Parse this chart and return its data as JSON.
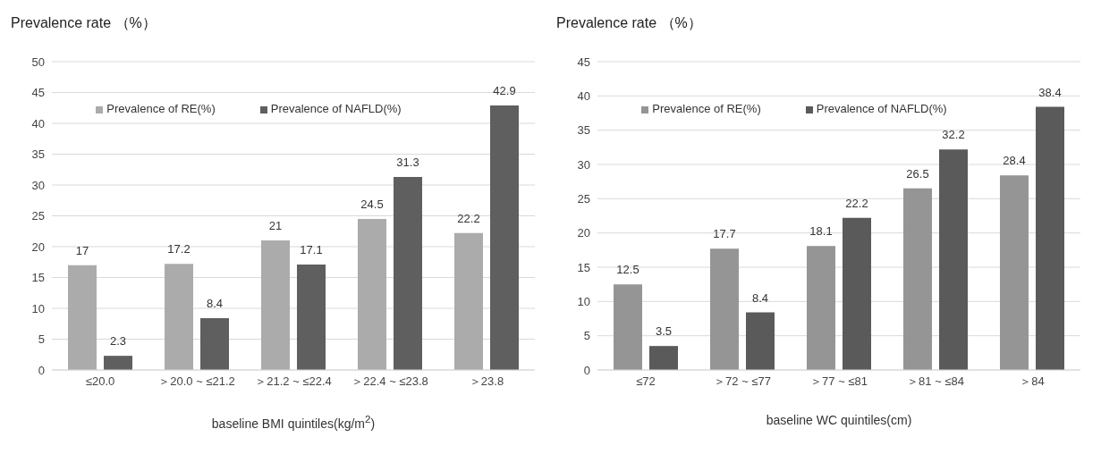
{
  "chart_data": [
    {
      "type": "bar",
      "ylabel": "Prevalence rate （%）",
      "xlabel": "baseline BMI quintiles(kg/m$^{2}$)",
      "categories": [
        "≤20.0",
        "＞20.0 ~ ≤21.2",
        "＞21.2 ~ ≤22.4",
        "＞22.4 ~ ≤23.8",
        "＞23.8"
      ],
      "series": [
        {
          "name": "Prevalence of RE(%)",
          "color": "#ababab",
          "values": [
            17,
            17.2,
            21,
            24.5,
            22.2
          ]
        },
        {
          "name": "Prevalence of NAFLD(%)",
          "color": "#5f5f5f",
          "values": [
            2.3,
            8.4,
            17.1,
            31.3,
            42.9
          ]
        }
      ],
      "ylim": [
        0,
        50
      ],
      "yticks": [
        0,
        5,
        10,
        15,
        20,
        25,
        30,
        35,
        40,
        45,
        50
      ],
      "grid": "y",
      "legend": "top",
      "data_labels": true
    },
    {
      "type": "bar",
      "ylabel": "Prevalence rate （%）",
      "xlabel": "baseline WC quintiles(cm)",
      "categories": [
        "≤72",
        "＞72 ~ ≤77",
        "＞77 ~ ≤81",
        "＞81 ~ ≤84",
        "＞84"
      ],
      "series": [
        {
          "name": "Prevalence of RE(%)",
          "color": "#959595",
          "values": [
            12.5,
            17.7,
            18.1,
            26.5,
            28.4
          ]
        },
        {
          "name": "Prevalence of NAFLD(%)",
          "color": "#5a5a5a",
          "values": [
            3.5,
            8.4,
            22.2,
            32.2,
            38.4
          ]
        }
      ],
      "ylim": [
        0,
        45
      ],
      "yticks": [
        0,
        5,
        10,
        15,
        20,
        25,
        30,
        35,
        40,
        45
      ],
      "grid": "y",
      "legend": "top",
      "data_labels": true
    }
  ]
}
